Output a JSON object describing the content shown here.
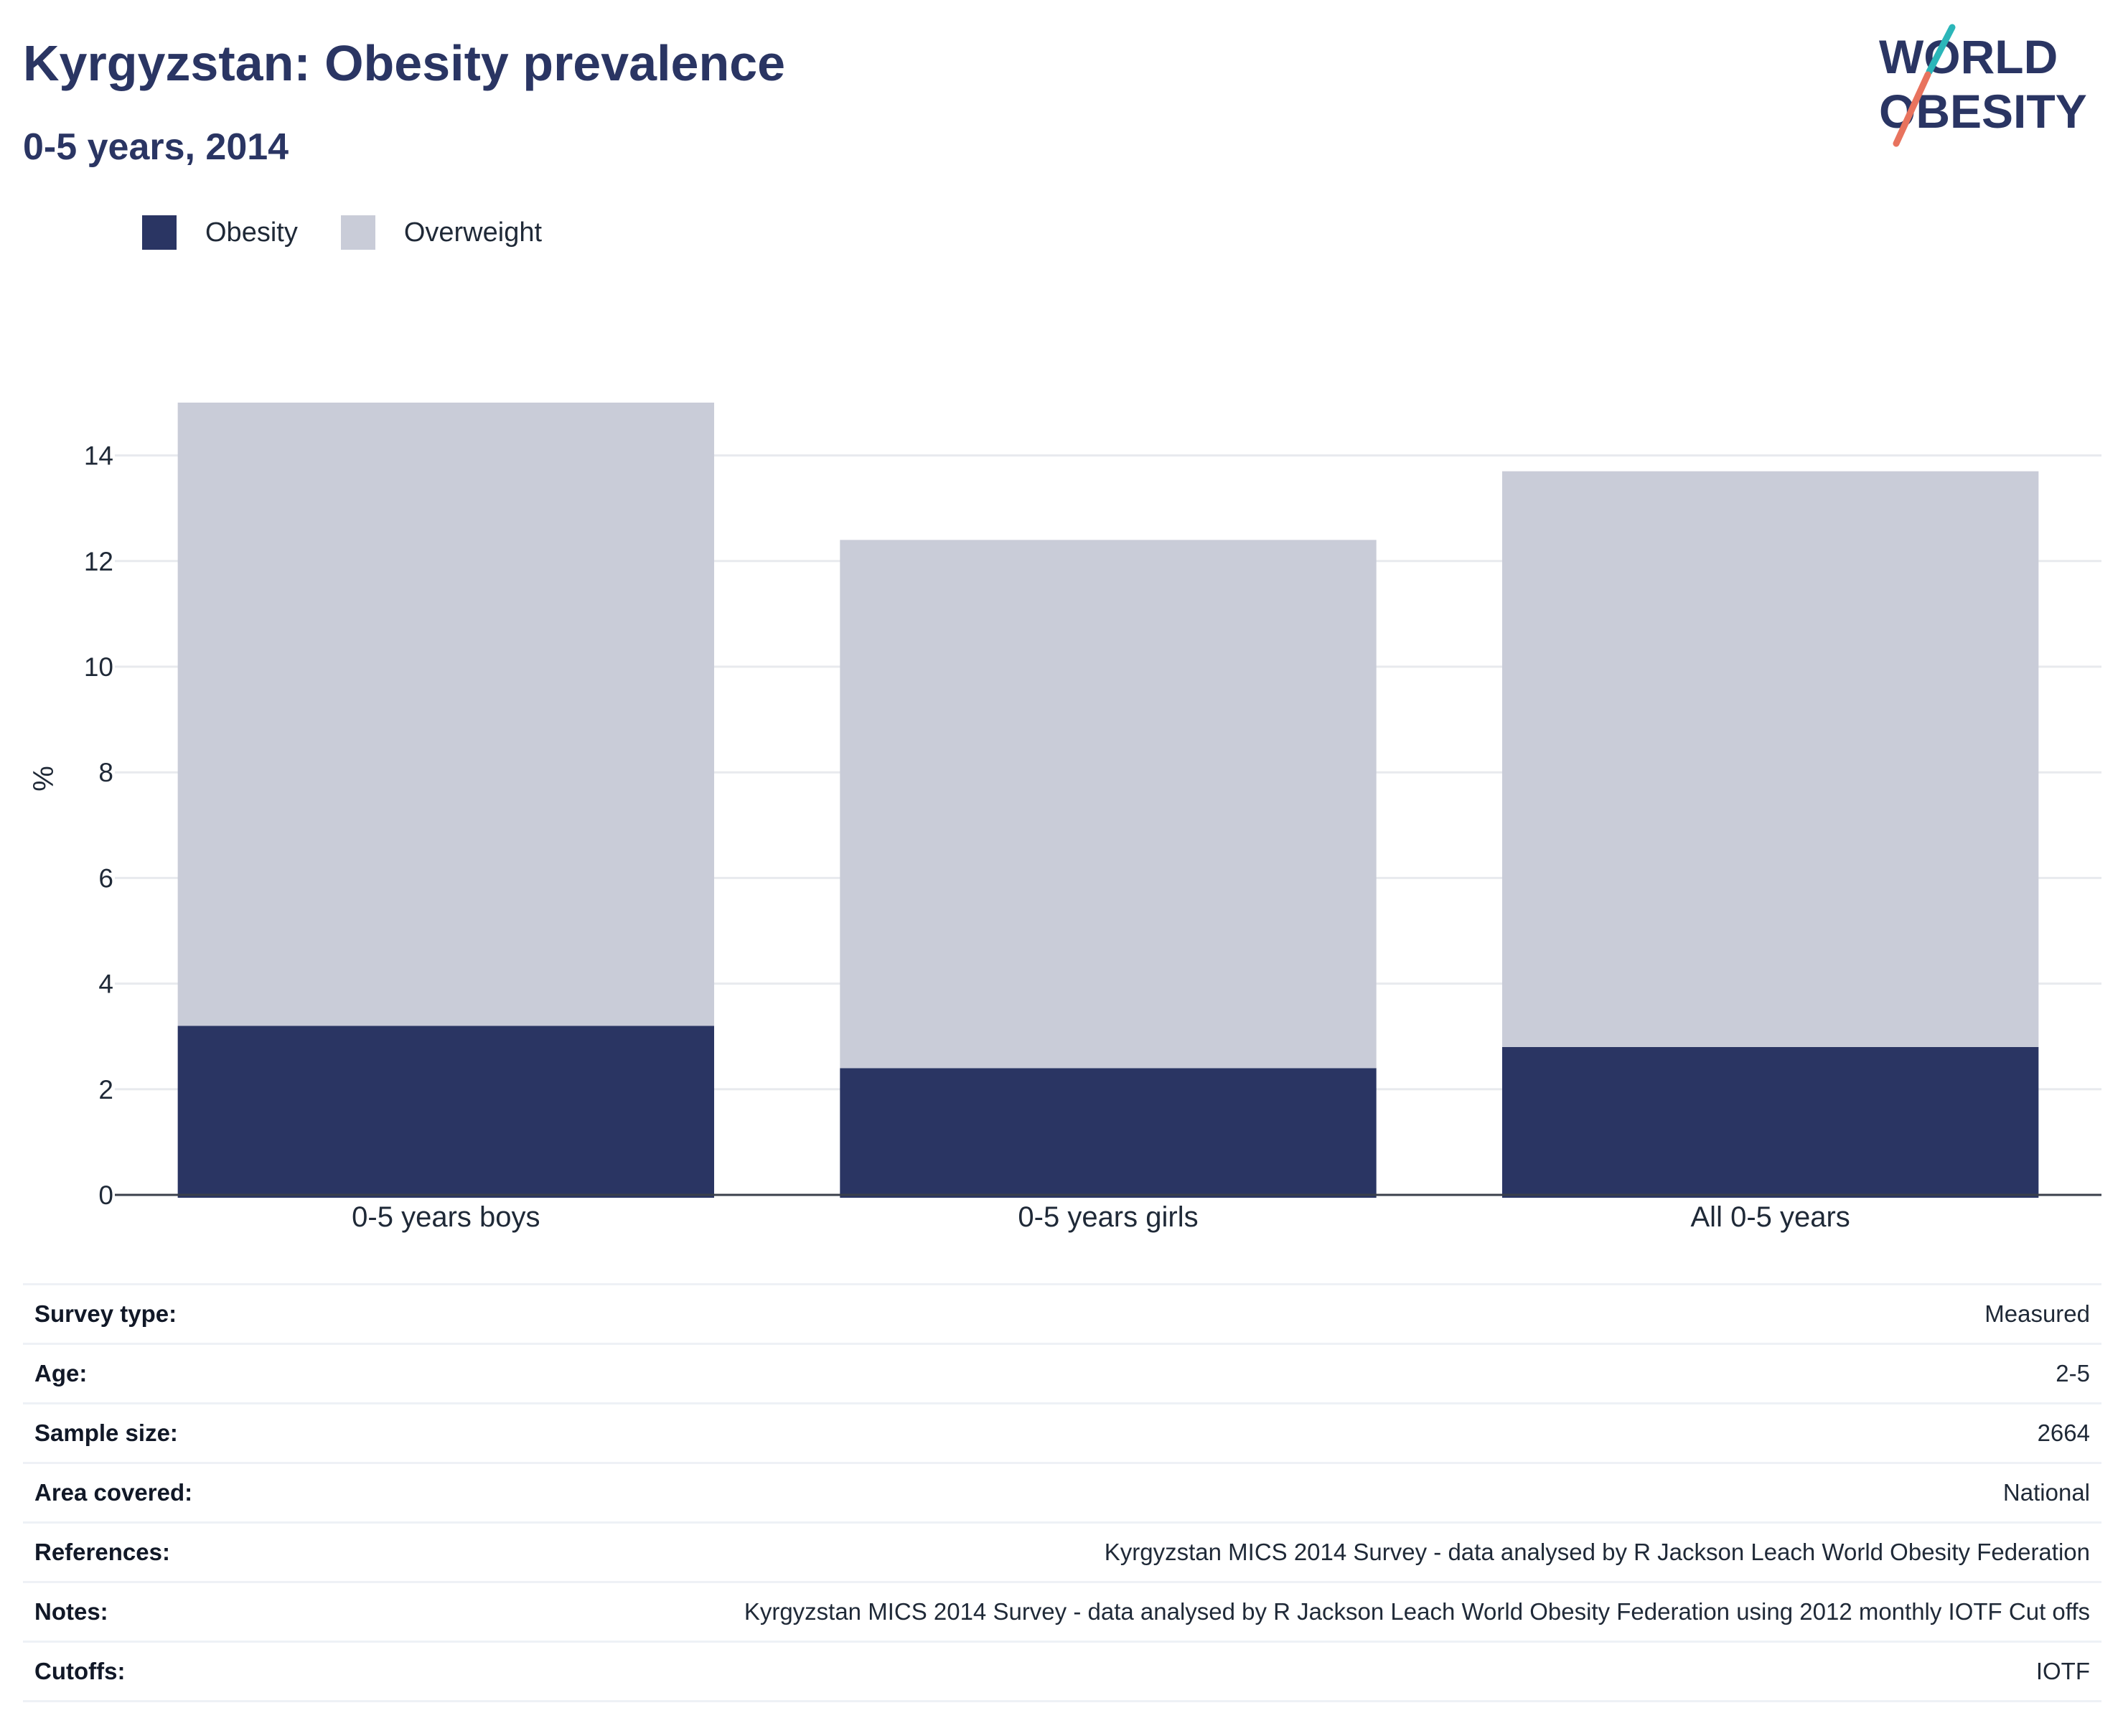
{
  "header": {
    "title": "Kyrgyzstan: Obesity prevalence",
    "subtitle": "0-5 years, 2014"
  },
  "logo": {
    "line1": "WORLD",
    "line2": "OBESITY",
    "colors": {
      "text": "#2a3563",
      "accent_teal": "#2bb6b9",
      "accent_coral": "#e8735e"
    }
  },
  "legend": [
    {
      "label": "Obesity",
      "color": "#2a3563"
    },
    {
      "label": "Overweight",
      "color": "#c9ccd8"
    }
  ],
  "chart_data": {
    "type": "bar",
    "stacked": true,
    "categories": [
      "0-5 years boys",
      "0-5 years girls",
      "All 0-5 years"
    ],
    "series": [
      {
        "name": "Obesity",
        "values": [
          3.2,
          2.4,
          2.8
        ],
        "color": "#2a3563"
      },
      {
        "name": "Overweight",
        "values": [
          11.8,
          10.0,
          10.9
        ],
        "color": "#c9ccd8"
      }
    ],
    "ylabel": "%",
    "xlabel": "",
    "ylim": [
      0,
      15
    ],
    "yticks": [
      0,
      2,
      4,
      6,
      8,
      10,
      12,
      14
    ],
    "grid": true,
    "legend_position": "top-left"
  },
  "meta": [
    {
      "key": "Survey type:",
      "value": "Measured"
    },
    {
      "key": "Age:",
      "value": "2-5"
    },
    {
      "key": "Sample size:",
      "value": "2664"
    },
    {
      "key": "Area covered:",
      "value": "National"
    },
    {
      "key": "References:",
      "value": "Kyrgyzstan MICS 2014 Survey - data analysed by R Jackson Leach World Obesity Federation"
    },
    {
      "key": "Notes:",
      "value": "Kyrgyzstan MICS 2014 Survey - data analysed by R Jackson Leach World Obesity Federation using 2012 monthly IOTF Cut offs"
    },
    {
      "key": "Cutoffs:",
      "value": "IOTF"
    }
  ]
}
